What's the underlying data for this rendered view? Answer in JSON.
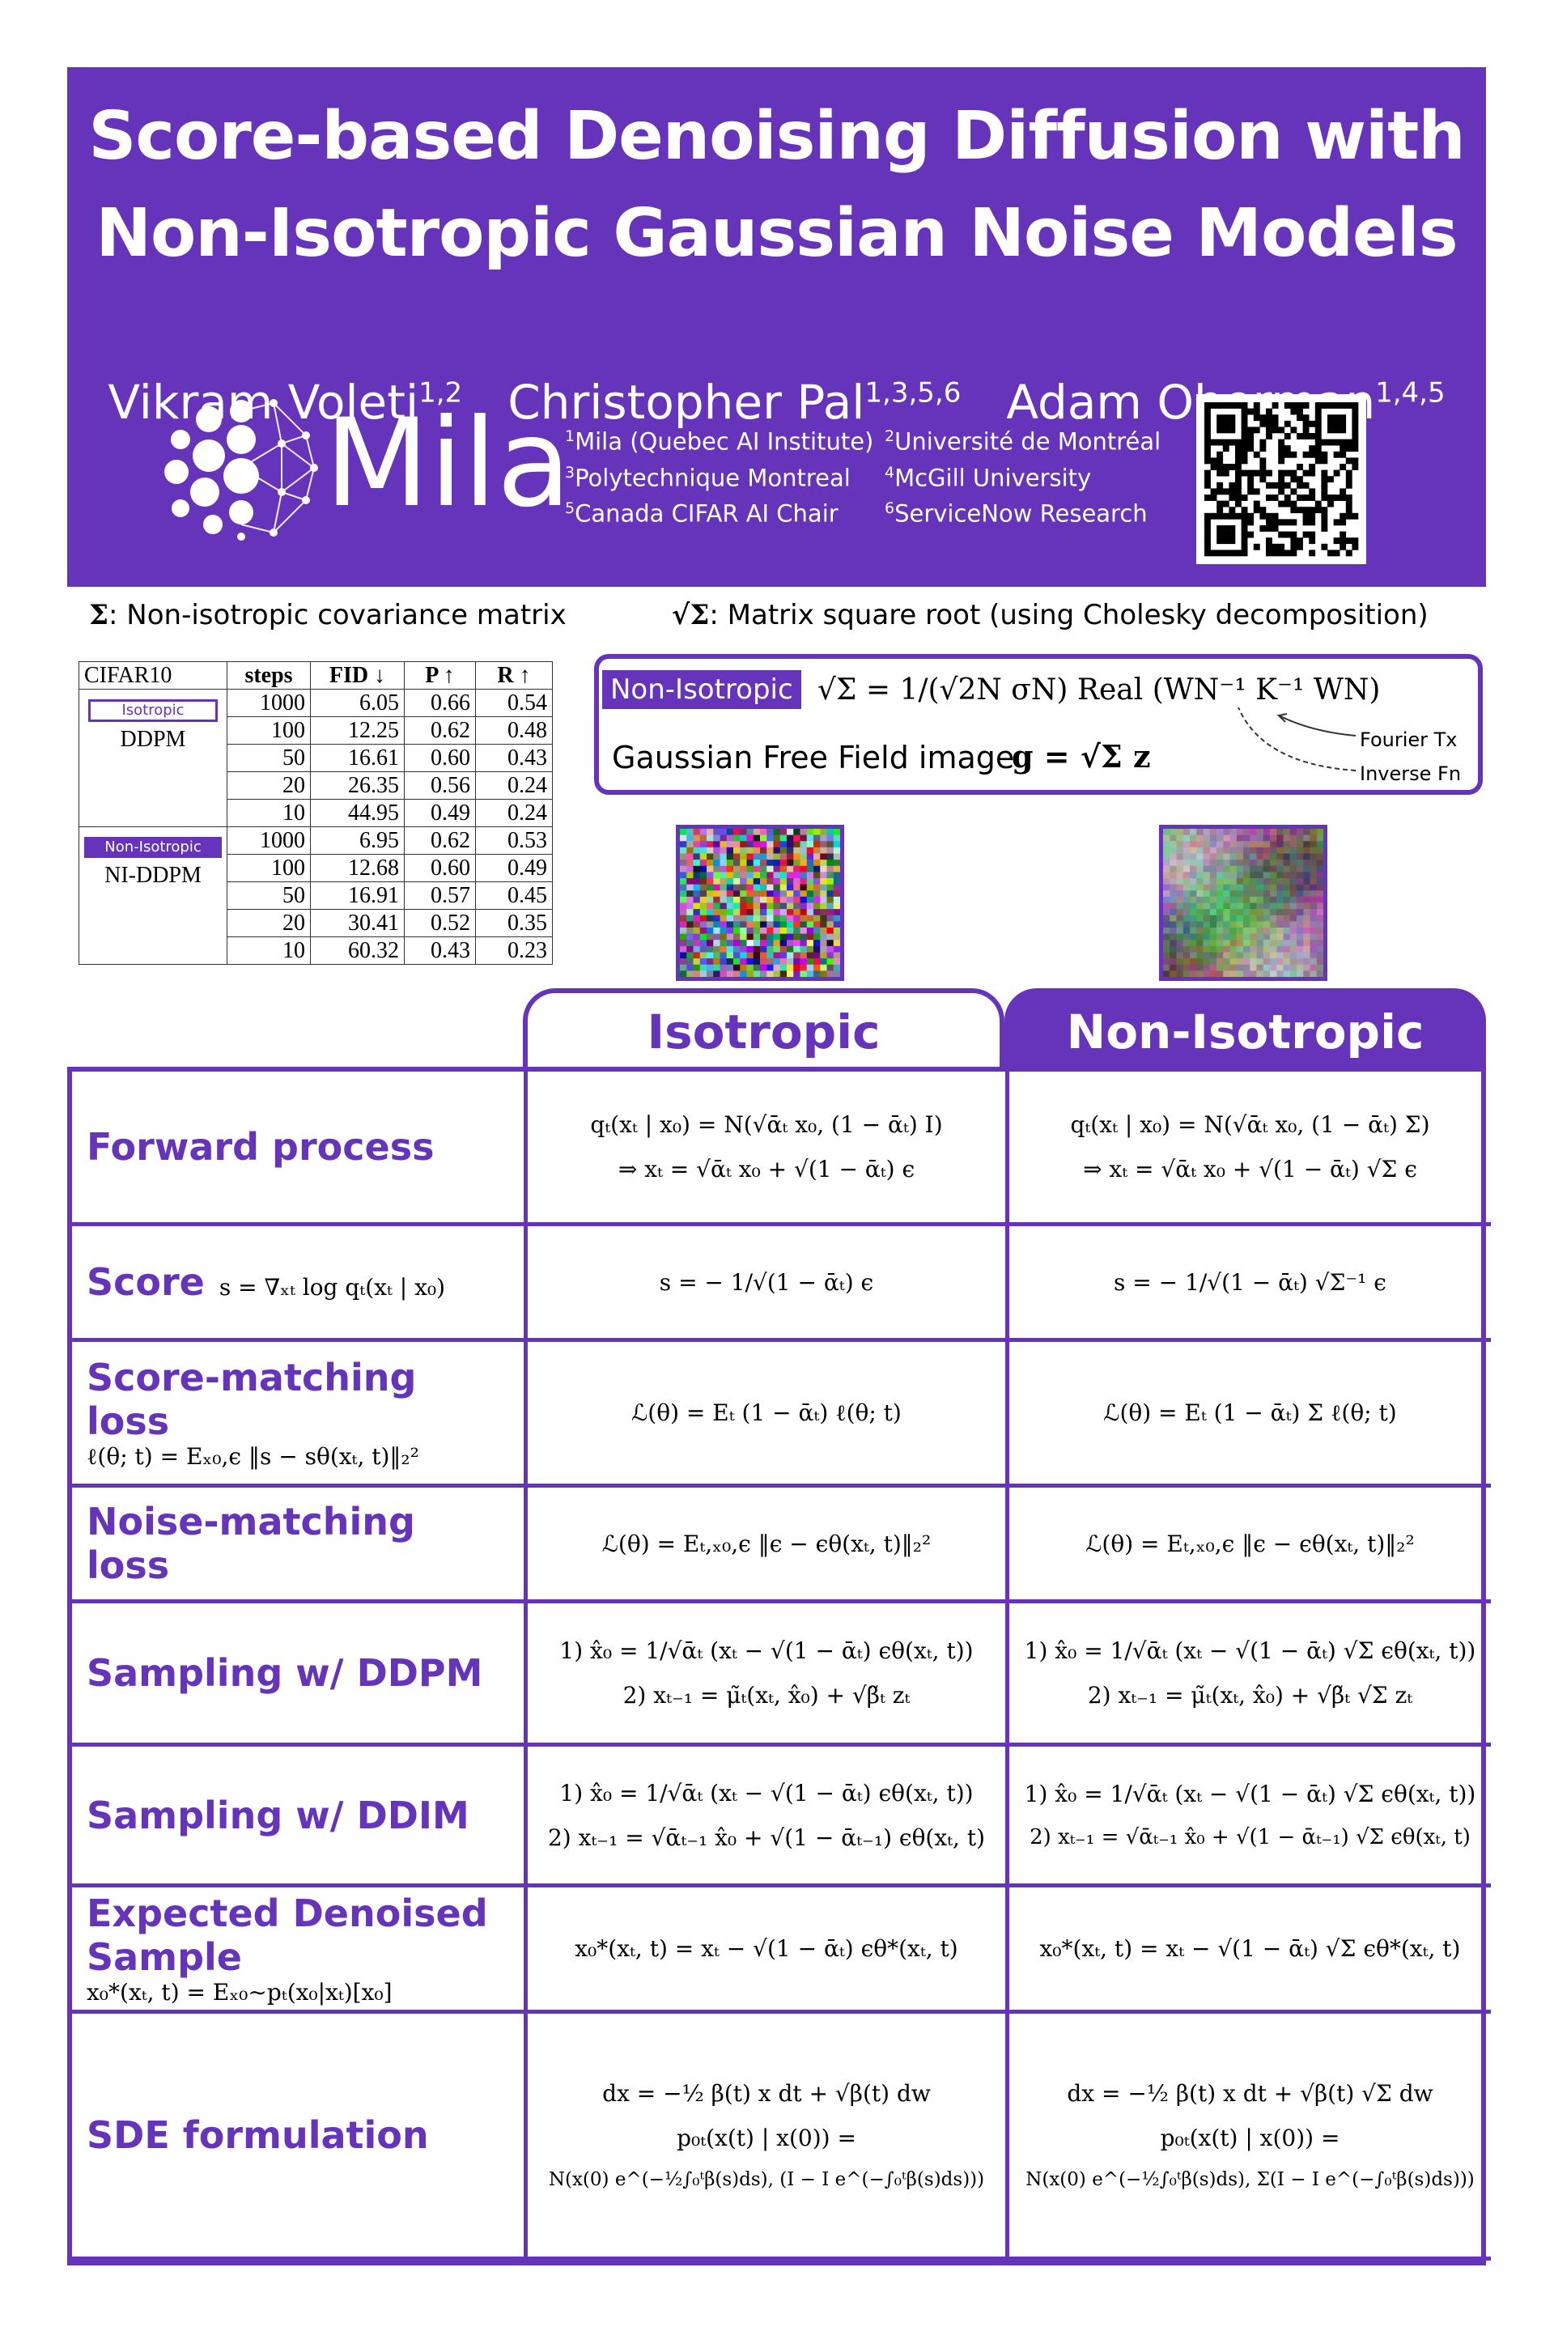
{
  "header": {
    "title_lines": [
      "Score-based Denoising Diffusion with",
      "Non-Isotropic Gaussian Noise Models"
    ],
    "authors": [
      {
        "name": "Vikram Voleti",
        "affiliations": "1,2"
      },
      {
        "name": "Christopher Pal",
        "affiliations": "1,3,5,6"
      },
      {
        "name": "Adam Oberman",
        "affiliations": "1,4,5"
      }
    ],
    "logo": "Mila",
    "affiliations": [
      {
        "number": "1",
        "name": "Mila (Quebec AI Institute)"
      },
      {
        "number": "2",
        "name": "Université de Montréal"
      },
      {
        "number": "3",
        "name": "Polytechnique Montreal"
      },
      {
        "number": "4",
        "name": "McGill University"
      },
      {
        "number": "5",
        "name": "Canada CIFAR AI Chair"
      },
      {
        "number": "6",
        "name": "ServiceNow Research"
      }
    ]
  },
  "definitions": [
    {
      "symbol": "Σ",
      "text": ": Non-isotropic covariance matrix"
    },
    {
      "symbol": "√Σ",
      "text": ": Matrix square root (using  Cholesky decomposition)"
    }
  ],
  "results_table": {
    "corner": "CIFAR10",
    "columns": [
      "steps",
      "FID ↓",
      "P ↑",
      "R ↑"
    ],
    "groups": [
      {
        "tag": "Isotropic",
        "model": "DDPM",
        "rows": [
          [
            "1000",
            "6.05",
            "0.66",
            "0.54"
          ],
          [
            "100",
            "12.25",
            "0.62",
            "0.48"
          ],
          [
            "50",
            "16.61",
            "0.60",
            "0.43"
          ],
          [
            "20",
            "26.35",
            "0.56",
            "0.24"
          ],
          [
            "10",
            "44.95",
            "0.49",
            "0.24"
          ]
        ]
      },
      {
        "tag": "Non-Isotropic",
        "model": "NI-DDPM",
        "rows": [
          [
            "1000",
            "6.95",
            "0.62",
            "0.53"
          ],
          [
            "100",
            "12.68",
            "0.60",
            "0.49"
          ],
          [
            "50",
            "16.91",
            "0.57",
            "0.45"
          ],
          [
            "20",
            "30.41",
            "0.52",
            "0.35"
          ],
          [
            "10",
            "60.32",
            "0.43",
            "0.23"
          ]
        ]
      }
    ]
  },
  "non_isotropic_box": {
    "tag": "Non-Isotropic",
    "formula": "√Σ = 1/(√2N σN) Real (WN⁻¹ K⁻¹ WN)",
    "image_label": "Gaussian Free Field image",
    "image_formula": "g = √Σ z",
    "annotations": [
      "Fourier Tx",
      "Inverse Fn"
    ]
  },
  "comparison": {
    "columns": [
      "Isotropic",
      "Non-Isotropic"
    ],
    "rows": [
      {
        "label": [
          "Forward process"
        ],
        "isotropic": [
          "qₜ(xₜ | x₀) = N(√ᾱₜ x₀, (1 − ᾱₜ) I)",
          "⇒ xₜ = √ᾱₜ x₀ + √(1 − ᾱₜ) ϵ"
        ],
        "non_isotropic": [
          "qₜ(xₜ | x₀) = N(√ᾱₜ x₀, (1 − ᾱₜ) Σ)",
          "⇒ xₜ = √ᾱₜ x₀ + √(1 − ᾱₜ) √Σ ϵ"
        ]
      },
      {
        "label": [
          "Score"
        ],
        "definition": "s = ∇ₓₜ log qₜ(xₜ | x₀)",
        "isotropic": [
          "s = − 1/√(1 − ᾱₜ) ϵ"
        ],
        "non_isotropic": [
          "s = − 1/√(1 − ᾱₜ) √Σ⁻¹ ϵ"
        ]
      },
      {
        "label": [
          "Score-matching loss"
        ],
        "definition": "ℓ(θ; t) = Eₓ₀,ϵ ‖s − sθ(xₜ, t)‖₂²",
        "isotropic": [
          "ℒ(θ) = Eₜ (1 − ᾱₜ) ℓ(θ; t)"
        ],
        "non_isotropic": [
          "ℒ(θ) = Eₜ (1 − ᾱₜ) Σ ℓ(θ; t)"
        ]
      },
      {
        "label": [
          "Noise-matching loss"
        ],
        "isotropic": [
          "ℒ(θ) = Eₜ,ₓ₀,ϵ ‖ϵ − ϵθ(xₜ, t)‖₂²"
        ],
        "non_isotropic": [
          "ℒ(θ) = Eₜ,ₓ₀,ϵ ‖ϵ − ϵθ(xₜ, t)‖₂²"
        ]
      },
      {
        "label": [
          "Sampling w/ DDPM"
        ],
        "isotropic": [
          "1) x̂₀ = 1/√ᾱₜ (xₜ − √(1 − ᾱₜ) ϵθ(xₜ, t))",
          "2) xₜ₋₁ = μ̃ₜ(xₜ, x̂₀) + √β̃ₜ zₜ"
        ],
        "non_isotropic": [
          "1) x̂₀ = 1/√ᾱₜ (xₜ − √(1 − ᾱₜ) √Σ ϵθ(xₜ, t))",
          "2) xₜ₋₁ = μ̃ₜ(xₜ, x̂₀) + √β̃ₜ √Σ zₜ"
        ]
      },
      {
        "label": [
          "Sampling w/ DDIM"
        ],
        "isotropic": [
          "1) x̂₀ = 1/√ᾱₜ (xₜ − √(1 − ᾱₜ) ϵθ(xₜ, t))",
          "2) xₜ₋₁ = √ᾱₜ₋₁ x̂₀ + √(1 − ᾱₜ₋₁) ϵθ(xₜ, t)"
        ],
        "non_isotropic": [
          "1) x̂₀ = 1/√ᾱₜ (xₜ − √(1 − ᾱₜ) √Σ ϵθ(xₜ, t))",
          "2) xₜ₋₁ = √ᾱₜ₋₁ x̂₀ + √(1 − ᾱₜ₋₁) √Σ ϵθ(xₜ, t)"
        ]
      },
      {
        "label": [
          "Expected Denoised",
          "Sample"
        ],
        "definition": "x₀*(xₜ, t) = Eₓ₀∼pₜ(x₀|xₜ)[x₀]",
        "isotropic": [
          "x₀*(xₜ, t) = xₜ − √(1 − ᾱₜ) ϵθ*(xₜ, t)"
        ],
        "non_isotropic": [
          "x₀*(xₜ, t) = xₜ − √(1 − ᾱₜ) √Σ ϵθ*(xₜ, t)"
        ]
      },
      {
        "label": [
          "SDE formulation"
        ],
        "isotropic": [
          "dx = −½ β(t) x dt + √β(t) dw",
          "p₀ₜ(x(t) | x(0)) =",
          "N(x(0) e^(−½∫₀ᵗβ(s)ds), (I − I e^(−∫₀ᵗβ(s)ds)))"
        ],
        "non_isotropic": [
          "dx = −½ β(t) x dt + √β(t) √Σ dw",
          "p₀ₜ(x(t) | x(0)) =",
          "N(x(0) e^(−½∫₀ᵗβ(s)ds), Σ(I − I e^(−∫₀ᵗβ(s)ds)))"
        ]
      }
    ]
  }
}
